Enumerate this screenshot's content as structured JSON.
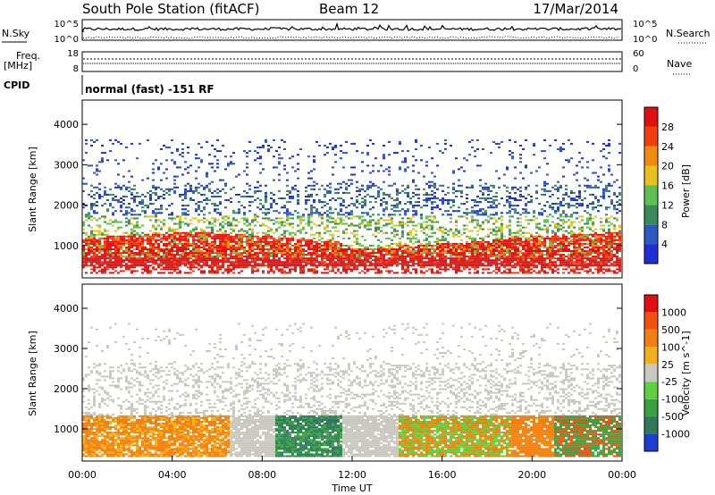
{
  "header": {
    "station": "South Pole Station (fitACF)",
    "beam": "Beam 12",
    "date": "17/Mar/2014"
  },
  "top_strip": {
    "left_label": "N.Sky",
    "right_label": "N.Search",
    "left_ticks": [
      "10^5",
      "10^0"
    ],
    "right_ticks": [
      "10^5",
      "10^0"
    ]
  },
  "freq_strip": {
    "left_label_1": "Freq.",
    "left_label_2": "[MHz]",
    "right_label": "Nave",
    "left_ticks": [
      "18",
      "8"
    ],
    "right_ticks": [
      "60",
      "0"
    ]
  },
  "cpid": {
    "label": "CPID",
    "value": "normal (fast) -151 RF"
  },
  "chart_data": [
    {
      "type": "heatmap",
      "title": "Power",
      "xlabel": "Time UT",
      "ylabel": "Slant Range [km]",
      "x_ticks": [
        "00:00",
        "04:00",
        "08:00",
        "12:00",
        "16:00",
        "20:00",
        "00:00"
      ],
      "xlim_hours": [
        0,
        24
      ],
      "ylim_km": [
        200,
        4600
      ],
      "y_ticks": [
        1000,
        2000,
        3000,
        4000
      ],
      "colorbar_label": "Power [dB]",
      "colorbar_ticks": [
        "4",
        "8",
        "12",
        "16",
        "20",
        "24",
        "28"
      ],
      "colorbar_range": [
        0,
        30
      ],
      "colors": [
        "#1e2fd8",
        "#2a5ac0",
        "#3a8a5a",
        "#5cbf50",
        "#e8c020",
        "#f08a10",
        "#f04010",
        "#e01010"
      ]
    },
    {
      "type": "heatmap",
      "title": "Velocity",
      "xlabel": "Time UT",
      "ylabel": "Slant Range [km]",
      "x_ticks": [
        "00:00",
        "04:00",
        "08:00",
        "12:00",
        "16:00",
        "20:00",
        "00:00"
      ],
      "xlim_hours": [
        0,
        24
      ],
      "ylim_km": [
        200,
        4600
      ],
      "y_ticks": [
        1000,
        2000,
        3000,
        4000
      ],
      "colorbar_label": "Velocity [m s^-1]",
      "colorbar_ticks": [
        "1000",
        "500",
        "100",
        "25",
        "-25",
        "-100",
        "-500",
        "-1000"
      ],
      "colors": [
        "#1e3ed0",
        "#2e7a5a",
        "#3aa040",
        "#60cf40",
        "#c8c8c0",
        "#f0b020",
        "#f08010",
        "#f05010",
        "#e01010"
      ]
    }
  ]
}
